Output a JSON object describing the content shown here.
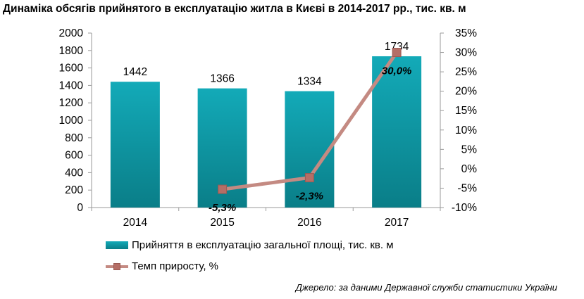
{
  "title": "Динаміка обсягів прийнятого в експлуатацію житла в Києві в 2014-2017 рр., тис. кв. м",
  "source": "Джерело: за даними Державної служби статистики України",
  "colors": {
    "bar_top": "#13aab8",
    "bar_bottom": "#0a7e88",
    "line": "#c48a82",
    "marker": "#b56e66"
  },
  "chart_data": {
    "type": "bar",
    "categories": [
      "2014",
      "2015",
      "2016",
      "2017"
    ],
    "series": [
      {
        "name": "Прийняття в експлуатацію загальної площі, тис. кв. м",
        "type": "bar",
        "axis": "left",
        "values": [
          1442,
          1366,
          1334,
          1734
        ],
        "labels": [
          "1442",
          "1366",
          "1334",
          "1734"
        ]
      },
      {
        "name": "Темп приросту, %",
        "type": "line",
        "axis": "right",
        "values": [
          null,
          -5.3,
          -2.3,
          30.0
        ],
        "labels": [
          "",
          "-5,3%",
          "-2,3%",
          "30,0%"
        ]
      }
    ],
    "y_left": {
      "lim": [
        0,
        2000
      ],
      "ticks": [
        0,
        200,
        400,
        600,
        800,
        1000,
        1200,
        1400,
        1600,
        1800,
        2000
      ],
      "tick_labels": [
        "0",
        "200",
        "400",
        "600",
        "800",
        "1000",
        "1200",
        "1400",
        "1600",
        "1800",
        "2000"
      ]
    },
    "y_right": {
      "lim": [
        -10,
        35
      ],
      "ticks": [
        -10,
        -5,
        0,
        5,
        10,
        15,
        20,
        25,
        30,
        35
      ],
      "tick_labels": [
        "-10%",
        "-5%",
        "0%",
        "5%",
        "10%",
        "15%",
        "20%",
        "25%",
        "30%",
        "35%"
      ]
    },
    "grid": false,
    "legend_position": "bottom"
  }
}
